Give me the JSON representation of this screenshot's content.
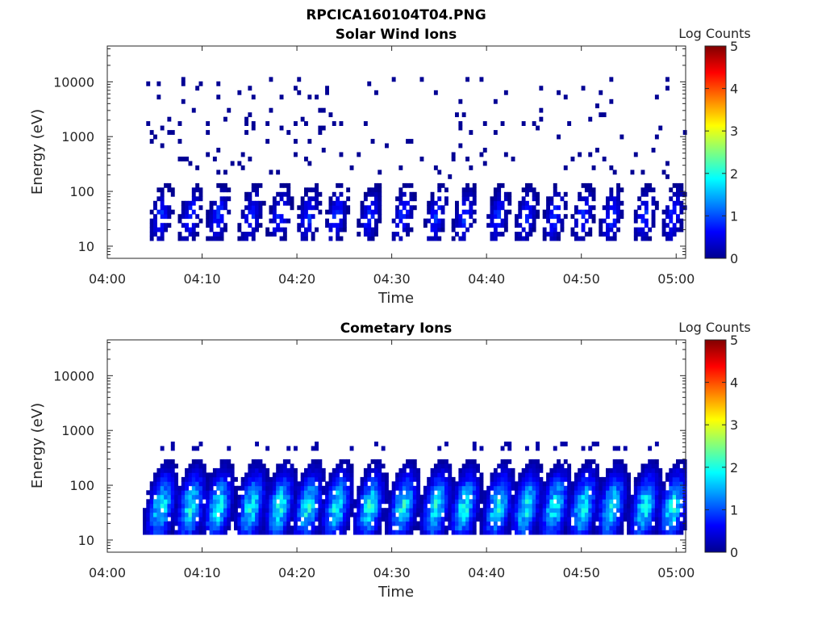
{
  "figure": {
    "title": "RPCICA160104T04.PNG"
  },
  "chart_data": [
    {
      "type": "heatmap",
      "title": "Solar Wind Ions",
      "xlabel": "Time",
      "ylabel": "Energy (eV)",
      "x_ticks": [
        "04:00",
        "04:10",
        "04:20",
        "04:30",
        "04:40",
        "04:50",
        "05:00"
      ],
      "x_range_minutes": [
        0,
        61
      ],
      "y_scale": "log",
      "y_ticks": [
        10,
        100,
        1000,
        10000
      ],
      "y_tick_labels": [
        "10",
        "100",
        "1000",
        "10000"
      ],
      "y_range": [
        6,
        45000
      ],
      "colorbar": {
        "label": "Log Counts",
        "range": [
          0,
          5
        ],
        "ticks": [
          "0",
          "1",
          "2",
          "3",
          "4",
          "5"
        ],
        "colormap": "jet"
      },
      "burst_centers_min": [
        5.5,
        8.6,
        11.5,
        15.0,
        18.0,
        21.0,
        24.0,
        27.5,
        31.0,
        34.5,
        37.5,
        41.0,
        44.0,
        47.0,
        50.0,
        53.0,
        56.5,
        59.5
      ],
      "burst_peak_energy_eV": 35,
      "max_log_counts": 1.0
    },
    {
      "type": "heatmap",
      "title": "Cometary Ions",
      "xlabel": "Time",
      "ylabel": "Energy (eV)",
      "x_ticks": [
        "04:00",
        "04:10",
        "04:20",
        "04:30",
        "04:40",
        "04:50",
        "05:00"
      ],
      "x_range_minutes": [
        0,
        61
      ],
      "y_scale": "log",
      "y_ticks": [
        10,
        100,
        1000,
        10000
      ],
      "y_tick_labels": [
        "10",
        "100",
        "1000",
        "10000"
      ],
      "y_range": [
        6,
        45000
      ],
      "colorbar": {
        "label": "Log Counts",
        "range": [
          0,
          5
        ],
        "ticks": [
          "0",
          "1",
          "2",
          "3",
          "4",
          "5"
        ],
        "colormap": "jet"
      },
      "burst_centers_min": [
        5.5,
        8.6,
        11.5,
        15.0,
        18.0,
        21.0,
        24.0,
        27.5,
        31.0,
        34.5,
        37.5,
        41.0,
        44.0,
        47.0,
        50.0,
        53.0,
        56.5,
        59.5
      ],
      "burst_peak_energy_eV": 40,
      "max_log_counts": 2.3
    }
  ]
}
